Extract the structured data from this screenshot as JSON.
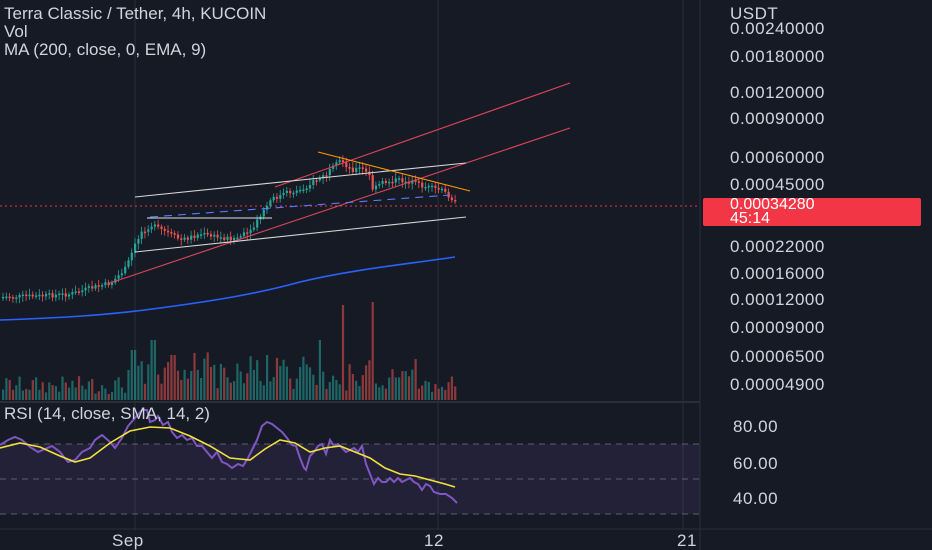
{
  "header": {
    "title": "Terra Classic / Tether, 4h, KUCOIN",
    "vol": "Vol",
    "ma": "MA (200, close, 0, EMA, 9)",
    "rsi": "RSI (14, close, SMA, 14, 2)"
  },
  "price_axis": {
    "currency": "USDT",
    "labels": [
      "0.00240000",
      "0.00180000",
      "0.00120000",
      "0.00090000",
      "0.00060000",
      "0.00045000",
      "0.00022000",
      "0.00016000",
      "0.00012000",
      "0.00009000",
      "0.00006500",
      "0.00004900"
    ],
    "last_price": "0.00034280",
    "countdown": "45:14"
  },
  "rsi_axis": {
    "labels": [
      "80.00",
      "60.00",
      "40.00"
    ]
  },
  "time_axis": {
    "labels": [
      "Sep",
      "12",
      "21"
    ]
  },
  "colors": {
    "background": "#161a25",
    "up": "#26a69a",
    "down": "#ef5350",
    "ma": "#2962ff",
    "rsi": "#7e57c2",
    "rsi_ma": "#f2e33c",
    "channel_red": "#e0455a",
    "channel_white": "#e6e6e6",
    "trend_orange": "#ff9800",
    "price_tag": "#f23645"
  },
  "chart_data": {
    "type": "candlestick",
    "title": "Terra Classic / Tether, 4h, KUCOIN",
    "y_scale": "log",
    "price_range": [
      4.9e-05,
      0.0024
    ],
    "last_price": 0.0003428,
    "x_ticks": [
      "Sep",
      "12",
      "21"
    ],
    "price_ticks": [
      0.0024,
      0.0018,
      0.0012,
      0.0009,
      0.0006,
      0.00045,
      0.00022,
      0.00016,
      0.00012,
      9e-05,
      6.5e-05,
      4.9e-05
    ],
    "series": [
      {
        "name": "MA (200, close, 0, EMA, 9)",
        "approx_values": {
          "start": 9.2e-05,
          "end": 0.00021
        }
      },
      {
        "name": "RSI (14, close, SMA, 14, 2)",
        "range": [
          40,
          80
        ],
        "approx_values": [
          65,
          72,
          68,
          88,
          78,
          60,
          65,
          82,
          70,
          60,
          72,
          60,
          50,
          44,
          36
        ]
      }
    ],
    "rsi_levels": [
      70,
      50,
      30
    ]
  }
}
